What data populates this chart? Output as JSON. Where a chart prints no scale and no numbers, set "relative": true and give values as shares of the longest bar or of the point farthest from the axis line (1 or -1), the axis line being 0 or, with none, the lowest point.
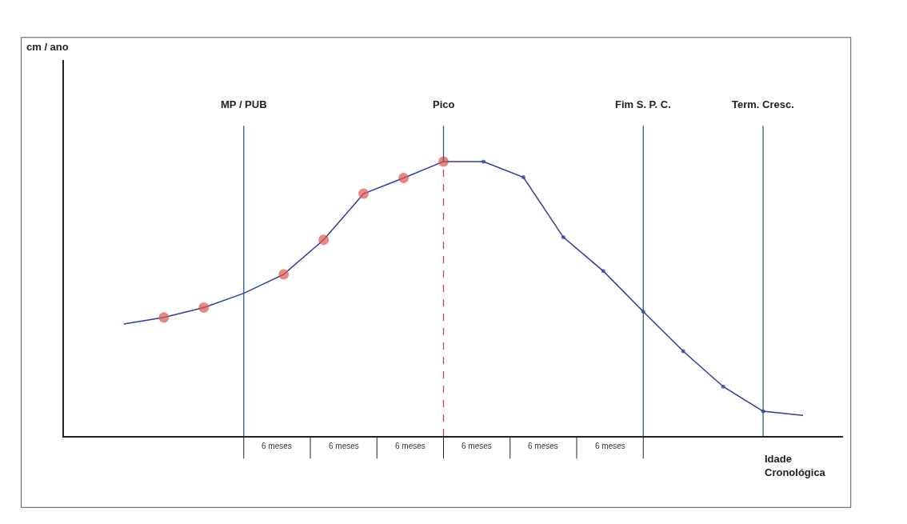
{
  "chart_data": {
    "type": "line",
    "relative": true,
    "xlabel": "Idade\nCronológica",
    "categories": [
      null,
      null,
      null,
      null,
      null,
      null,
      null,
      null,
      null,
      null,
      null,
      null,
      null,
      null,
      null,
      null,
      null,
      null
    ],
    "legend": false,
    "grid": "x",
    "series": [
      {
        "color": "#2b3c9e",
        "values": [
          0.408,
          0.432,
          0.468,
          0.52,
          0.589,
          0.715,
          0.883,
          0.94,
          1.0,
          1.0,
          0.943,
          0.724,
          0.601,
          0.453,
          0.309,
          0.18,
          0.09,
          0.075
        ],
        "colors": [
          null,
          "#e0554a",
          "#e0554a",
          null,
          "#e0554a",
          "#e0554a",
          "#e0554a",
          "#e0554a",
          "#e0554a",
          "#2b3c9e",
          "#2b3c9e",
          "#2b3c9e",
          "#2b3c9e",
          "#2b3c9e",
          "#2b3c9e",
          "#2b3c9e",
          "#2b3c9e",
          null
        ]
      }
    ],
    "annotations": [
      "cm / ano",
      "MP / PUB",
      "Pico",
      "Fim S. P. C.",
      "Term. Cresc.",
      "6 meses",
      "6 meses",
      "6 meses",
      "6 meses",
      "6 meses",
      "6 meses"
    ]
  }
}
